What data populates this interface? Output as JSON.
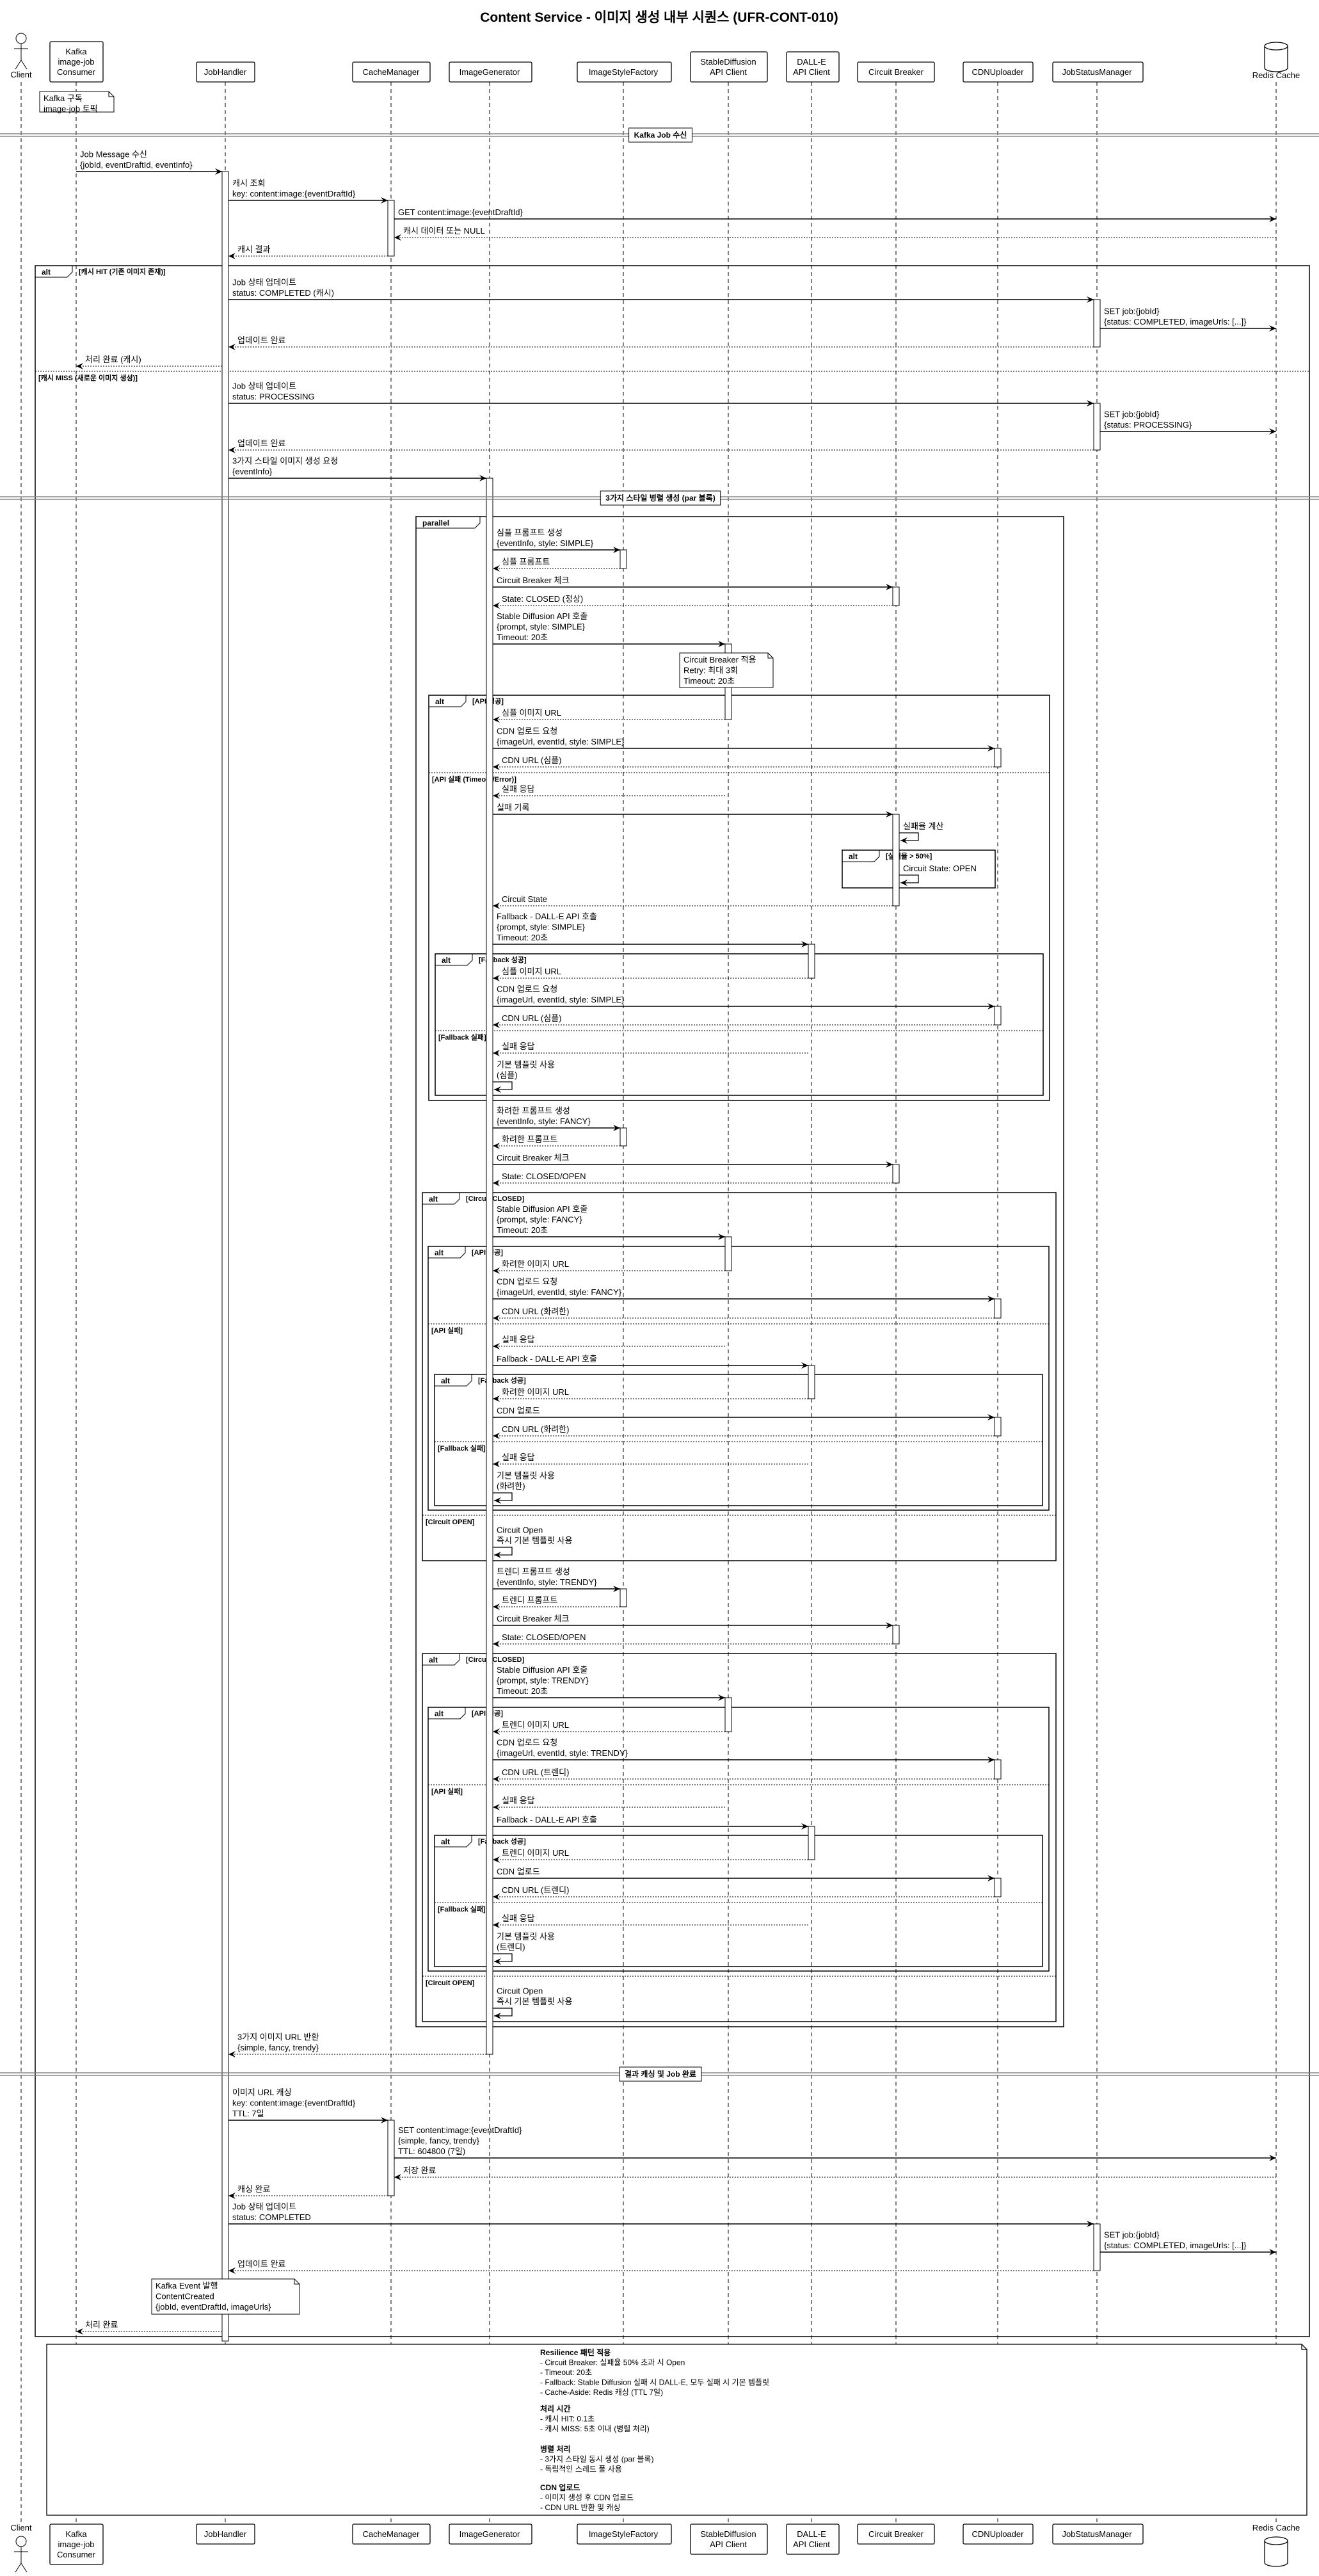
{
  "title": "Content Service - 이미지 생성 내부 시퀀스 (UFR-CONT-010)",
  "participants": [
    {
      "id": "client",
      "kind": "actor",
      "lines": [
        "Client"
      ]
    },
    {
      "id": "kafka",
      "kind": "box",
      "lines": [
        "Kafka",
        "image-job",
        "Consumer"
      ]
    },
    {
      "id": "jh",
      "kind": "box",
      "lines": [
        "JobHandler"
      ]
    },
    {
      "id": "cm",
      "kind": "box",
      "lines": [
        "CacheManager"
      ]
    },
    {
      "id": "ig",
      "kind": "box",
      "lines": [
        "ImageGenerator"
      ]
    },
    {
      "id": "isf",
      "kind": "box",
      "lines": [
        "ImageStyleFactory"
      ]
    },
    {
      "id": "sd",
      "kind": "box",
      "lines": [
        "StableDiffusion",
        "API Client"
      ]
    },
    {
      "id": "dalle",
      "kind": "box",
      "lines": [
        "DALL-E",
        "API Client"
      ]
    },
    {
      "id": "cb",
      "kind": "box",
      "lines": [
        "Circuit Breaker"
      ]
    },
    {
      "id": "cdn",
      "kind": "box",
      "lines": [
        "CDNUploader"
      ]
    },
    {
      "id": "jsm",
      "kind": "box",
      "lines": [
        "JobStatusManager"
      ]
    },
    {
      "id": "redis",
      "kind": "database",
      "lines": [
        "Redis Cache"
      ]
    }
  ],
  "sequence": [
    {
      "type": "note",
      "anchor": "kafka",
      "lines": [
        "Kafka 구독",
        "image-job 토픽"
      ]
    },
    {
      "type": "divider",
      "lines": [
        "Kafka Job 수신"
      ]
    },
    {
      "type": "msg",
      "from": "kafka",
      "to": "jh",
      "lines": [
        "Job Message 수신",
        "{jobId, eventDraftId, eventInfo}"
      ]
    },
    {
      "type": "msg",
      "from": "jh",
      "to": "cm",
      "lines": [
        "캐시 조회",
        "key: content:image:{eventDraftId}"
      ]
    },
    {
      "type": "msg",
      "from": "cm",
      "to": "redis",
      "lines": [
        "GET content:image:{eventDraftId}"
      ]
    },
    {
      "type": "ret",
      "from": "redis",
      "to": "cm",
      "lines": [
        "캐시 데이터 또는 NULL"
      ]
    },
    {
      "type": "ret",
      "from": "cm",
      "to": "jh",
      "lines": [
        "캐시 결과"
      ]
    },
    {
      "type": "start",
      "kind": "alt",
      "lines": [
        "[캐시 HIT (기존 이미지 존재)]"
      ]
    },
    {
      "type": "msg",
      "from": "jh",
      "to": "jsm",
      "lines": [
        "Job 상태 업데이트",
        "status: COMPLETED (캐시)"
      ]
    },
    {
      "type": "msg",
      "from": "jsm",
      "to": "redis",
      "lines": [
        "SET job:{jobId}",
        "{status: COMPLETED, imageUrls: [...]}"
      ]
    },
    {
      "type": "ret",
      "from": "jsm",
      "to": "jh",
      "lines": [
        "업데이트 완료"
      ]
    },
    {
      "type": "ret",
      "from": "jh",
      "to": "kafka",
      "lines": [
        "처리 완료 (캐시)"
      ]
    },
    {
      "type": "else",
      "lines": [
        "[캐시 MISS (새로운 이미지 생성)]"
      ]
    },
    {
      "type": "msg",
      "from": "jh",
      "to": "jsm",
      "lines": [
        "Job 상태 업데이트",
        "status: PROCESSING"
      ]
    },
    {
      "type": "msg",
      "from": "jsm",
      "to": "redis",
      "lines": [
        "SET job:{jobId}",
        "{status: PROCESSING}"
      ]
    },
    {
      "type": "ret",
      "from": "jsm",
      "to": "jh",
      "lines": [
        "업데이트 완료"
      ]
    },
    {
      "type": "msg",
      "from": "jh",
      "to": "ig",
      "lines": [
        "3가지 스타일 이미지 생성 요청",
        "{eventInfo}"
      ]
    },
    {
      "type": "divider",
      "lines": [
        "3가지 스타일 병렬 생성 (par 블록)"
      ]
    },
    {
      "type": "start",
      "kind": "parallel",
      "lines": []
    },
    {
      "type": "msg",
      "from": "ig",
      "to": "isf",
      "lines": [
        "심플 프롬프트 생성",
        "{eventInfo, style: SIMPLE}"
      ]
    },
    {
      "type": "ret",
      "from": "isf",
      "to": "ig",
      "lines": [
        "심플 프롬프트"
      ]
    },
    {
      "type": "msg",
      "from": "ig",
      "to": "cb",
      "lines": [
        "Circuit Breaker 체크"
      ]
    },
    {
      "type": "ret",
      "from": "cb",
      "to": "ig",
      "lines": [
        "State: CLOSED (정상)"
      ]
    },
    {
      "type": "msg",
      "from": "ig",
      "to": "sd",
      "lines": [
        "Stable Diffusion API 호출",
        "{prompt, style: SIMPLE}",
        "Timeout: 20초"
      ]
    },
    {
      "type": "note",
      "anchor": "sd",
      "lines": [
        "Circuit Breaker 적용",
        "Retry: 최대 3회",
        "Timeout: 20초"
      ]
    },
    {
      "type": "start",
      "kind": "alt",
      "lines": [
        "[API 성공]"
      ]
    },
    {
      "type": "ret",
      "from": "sd",
      "to": "ig",
      "lines": [
        "심플 이미지 URL"
      ]
    },
    {
      "type": "msg",
      "from": "ig",
      "to": "cdn",
      "lines": [
        "CDN 업로드 요청",
        "{imageUrl, eventId, style: SIMPLE}"
      ]
    },
    {
      "type": "ret",
      "from": "cdn",
      "to": "ig",
      "lines": [
        "CDN URL (심플)"
      ]
    },
    {
      "type": "else",
      "lines": [
        "[API 실패 (Timeout/Error)]"
      ]
    },
    {
      "type": "ret",
      "from": "sd",
      "to": "ig",
      "lines": [
        "실패 응답"
      ]
    },
    {
      "type": "msg",
      "from": "ig",
      "to": "cb",
      "lines": [
        "실패 기록"
      ]
    },
    {
      "type": "self",
      "at": "cb",
      "lines": [
        "실패율 계산"
      ]
    },
    {
      "type": "start",
      "kind": "alt",
      "lines": [
        "[실패율 > 50%]"
      ]
    },
    {
      "type": "self",
      "at": "cb",
      "lines": [
        "Circuit State: OPEN"
      ]
    },
    {
      "type": "end"
    },
    {
      "type": "ret",
      "from": "cb",
      "to": "ig",
      "lines": [
        "Circuit State"
      ]
    },
    {
      "type": "msg",
      "from": "ig",
      "to": "dalle",
      "lines": [
        "Fallback - DALL-E API 호출",
        "{prompt, style: SIMPLE}",
        "Timeout: 20초"
      ]
    },
    {
      "type": "start",
      "kind": "alt",
      "lines": [
        "[Fallback 성공]"
      ]
    },
    {
      "type": "ret",
      "from": "dalle",
      "to": "ig",
      "lines": [
        "심플 이미지 URL"
      ]
    },
    {
      "type": "msg",
      "from": "ig",
      "to": "cdn",
      "lines": [
        "CDN 업로드 요청",
        "{imageUrl, eventId, style: SIMPLE}"
      ]
    },
    {
      "type": "ret",
      "from": "cdn",
      "to": "ig",
      "lines": [
        "CDN URL (심플)"
      ]
    },
    {
      "type": "else",
      "lines": [
        "[Fallback 실패]"
      ]
    },
    {
      "type": "ret",
      "from": "dalle",
      "to": "ig",
      "lines": [
        "실패 응답"
      ]
    },
    {
      "type": "self",
      "at": "ig",
      "lines": [
        "기본 템플릿 사용",
        "(심플)"
      ]
    },
    {
      "type": "end"
    },
    {
      "type": "end"
    },
    {
      "type": "msg",
      "from": "ig",
      "to": "isf",
      "lines": [
        "화려한 프롬프트 생성",
        "{eventInfo, style: FANCY}"
      ]
    },
    {
      "type": "ret",
      "from": "isf",
      "to": "ig",
      "lines": [
        "화려한 프롬프트"
      ]
    },
    {
      "type": "msg",
      "from": "ig",
      "to": "cb",
      "lines": [
        "Circuit Breaker 체크"
      ]
    },
    {
      "type": "ret",
      "from": "cb",
      "to": "ig",
      "lines": [
        "State: CLOSED/OPEN"
      ]
    },
    {
      "type": "start",
      "kind": "alt",
      "lines": [
        "[Circuit CLOSED]"
      ]
    },
    {
      "type": "msg",
      "from": "ig",
      "to": "sd",
      "lines": [
        "Stable Diffusion API 호출",
        "{prompt, style: FANCY}",
        "Timeout: 20초"
      ]
    },
    {
      "type": "start",
      "kind": "alt",
      "lines": [
        "[API 성공]"
      ]
    },
    {
      "type": "ret",
      "from": "sd",
      "to": "ig",
      "lines": [
        "화려한 이미지 URL"
      ]
    },
    {
      "type": "msg",
      "from": "ig",
      "to": "cdn",
      "lines": [
        "CDN 업로드 요청",
        "{imageUrl, eventId, style: FANCY}"
      ]
    },
    {
      "type": "ret",
      "from": "cdn",
      "to": "ig",
      "lines": [
        "CDN URL (화려한)"
      ]
    },
    {
      "type": "else",
      "lines": [
        "[API 실패]"
      ]
    },
    {
      "type": "ret",
      "from": "sd",
      "to": "ig",
      "lines": [
        "실패 응답"
      ]
    },
    {
      "type": "msg",
      "from": "ig",
      "to": "dalle",
      "lines": [
        "Fallback - DALL-E API 호출"
      ]
    },
    {
      "type": "start",
      "kind": "alt",
      "lines": [
        "[Fallback 성공]"
      ]
    },
    {
      "type": "ret",
      "from": "dalle",
      "to": "ig",
      "lines": [
        "화려한 이미지 URL"
      ]
    },
    {
      "type": "msg",
      "from": "ig",
      "to": "cdn",
      "lines": [
        "CDN 업로드"
      ]
    },
    {
      "type": "ret",
      "from": "cdn",
      "to": "ig",
      "lines": [
        "CDN URL (화려한)"
      ]
    },
    {
      "type": "else",
      "lines": [
        "[Fallback 실패]"
      ]
    },
    {
      "type": "ret",
      "from": "dalle",
      "to": "ig",
      "lines": [
        "실패 응답"
      ]
    },
    {
      "type": "self",
      "at": "ig",
      "lines": [
        "기본 템플릿 사용",
        "(화려한)"
      ]
    },
    {
      "type": "end"
    },
    {
      "type": "end"
    },
    {
      "type": "else",
      "lines": [
        "[Circuit OPEN]"
      ]
    },
    {
      "type": "self",
      "at": "ig",
      "lines": [
        "Circuit Open",
        "즉시 기본 템플릿 사용"
      ]
    },
    {
      "type": "end"
    },
    {
      "type": "msg",
      "from": "ig",
      "to": "isf",
      "lines": [
        "트렌디 프롬프트 생성",
        "{eventInfo, style: TRENDY}"
      ]
    },
    {
      "type": "ret",
      "from": "isf",
      "to": "ig",
      "lines": [
        "트렌디 프롬프트"
      ]
    },
    {
      "type": "msg",
      "from": "ig",
      "to": "cb",
      "lines": [
        "Circuit Breaker 체크"
      ]
    },
    {
      "type": "ret",
      "from": "cb",
      "to": "ig",
      "lines": [
        "State: CLOSED/OPEN"
      ]
    },
    {
      "type": "start",
      "kind": "alt",
      "lines": [
        "[Circuit CLOSED]"
      ]
    },
    {
      "type": "msg",
      "from": "ig",
      "to": "sd",
      "lines": [
        "Stable Diffusion API 호출",
        "{prompt, style: TRENDY}",
        "Timeout: 20초"
      ]
    },
    {
      "type": "start",
      "kind": "alt",
      "lines": [
        "[API 성공]"
      ]
    },
    {
      "type": "ret",
      "from": "sd",
      "to": "ig",
      "lines": [
        "트렌디 이미지 URL"
      ]
    },
    {
      "type": "msg",
      "from": "ig",
      "to": "cdn",
      "lines": [
        "CDN 업로드 요청",
        "{imageUrl, eventId, style: TRENDY}"
      ]
    },
    {
      "type": "ret",
      "from": "cdn",
      "to": "ig",
      "lines": [
        "CDN URL (트렌디)"
      ]
    },
    {
      "type": "else",
      "lines": [
        "[API 실패]"
      ]
    },
    {
      "type": "ret",
      "from": "sd",
      "to": "ig",
      "lines": [
        "실패 응답"
      ]
    },
    {
      "type": "msg",
      "from": "ig",
      "to": "dalle",
      "lines": [
        "Fallback - DALL-E API 호출"
      ]
    },
    {
      "type": "start",
      "kind": "alt",
      "lines": [
        "[Fallback 성공]"
      ]
    },
    {
      "type": "ret",
      "from": "dalle",
      "to": "ig",
      "lines": [
        "트렌디 이미지 URL"
      ]
    },
    {
      "type": "msg",
      "from": "ig",
      "to": "cdn",
      "lines": [
        "CDN 업로드"
      ]
    },
    {
      "type": "ret",
      "from": "cdn",
      "to": "ig",
      "lines": [
        "CDN URL (트렌디)"
      ]
    },
    {
      "type": "else",
      "lines": [
        "[Fallback 실패]"
      ]
    },
    {
      "type": "ret",
      "from": "dalle",
      "to": "ig",
      "lines": [
        "실패 응답"
      ]
    },
    {
      "type": "self",
      "at": "ig",
      "lines": [
        "기본 템플릿 사용",
        "(트렌디)"
      ]
    },
    {
      "type": "end"
    },
    {
      "type": "end"
    },
    {
      "type": "else",
      "lines": [
        "[Circuit OPEN]"
      ]
    },
    {
      "type": "self",
      "at": "ig",
      "lines": [
        "Circuit Open",
        "즉시 기본 템플릿 사용"
      ]
    },
    {
      "type": "end"
    },
    {
      "type": "end"
    },
    {
      "type": "ret",
      "from": "ig",
      "to": "jh",
      "lines": [
        "3가지 이미지 URL 반환",
        "{simple, fancy, trendy}"
      ]
    },
    {
      "type": "divider",
      "lines": [
        "결과 캐싱 및 Job 완료"
      ]
    },
    {
      "type": "msg",
      "from": "jh",
      "to": "cm",
      "lines": [
        "이미지 URL 캐싱",
        "key: content:image:{eventDraftId}",
        "TTL: 7일"
      ]
    },
    {
      "type": "msg",
      "from": "cm",
      "to": "redis",
      "lines": [
        "SET content:image:{eventDraftId}",
        "{simple, fancy, trendy}",
        "TTL: 604800 (7일)"
      ]
    },
    {
      "type": "ret",
      "from": "redis",
      "to": "cm",
      "lines": [
        "저장 완료"
      ]
    },
    {
      "type": "ret",
      "from": "cm",
      "to": "jh",
      "lines": [
        "캐싱 완료"
      ]
    },
    {
      "type": "msg",
      "from": "jh",
      "to": "jsm",
      "lines": [
        "Job 상태 업데이트",
        "status: COMPLETED"
      ]
    },
    {
      "type": "msg",
      "from": "jsm",
      "to": "redis",
      "lines": [
        "SET job:{jobId}",
        "{status: COMPLETED, imageUrls: [...]}"
      ]
    },
    {
      "type": "ret",
      "from": "jsm",
      "to": "jh",
      "lines": [
        "업데이트 완료"
      ]
    },
    {
      "type": "note",
      "anchor": "jh",
      "lines": [
        "Kafka Event 발행",
        "ContentCreated",
        "{jobId, eventDraftId, imageUrls}"
      ]
    },
    {
      "type": "ret",
      "from": "jh",
      "to": "kafka",
      "lines": [
        "처리 완료"
      ]
    },
    {
      "type": "end"
    }
  ],
  "summary_note": {
    "sections": [
      {
        "title": "Resilience 패턴 적용",
        "items": [
          "- Circuit Breaker: 실패율 50% 초과 시 Open",
          "- Timeout: 20초",
          "- Fallback: Stable Diffusion 실패 시 DALL-E, 모두 실패 시 기본 템플릿",
          "- Cache-Aside: Redis 캐싱 (TTL 7일)"
        ]
      },
      {
        "title": "처리 시간",
        "items": [
          "- 캐시 HIT: 0.1초",
          "- 캐시 MISS: 5초 이내 (병렬 처리)"
        ]
      },
      {
        "title": "병렬 처리",
        "items": [
          "- 3가지 스타일 동시 생성 (par 블록)",
          "- 독립적인 스레드 풀 사용"
        ]
      },
      {
        "title": "CDN 업로드",
        "items": [
          "- 이미지 생성 후 CDN 업로드",
          "- CDN URL 반환 및 캐싱"
        ]
      }
    ]
  }
}
